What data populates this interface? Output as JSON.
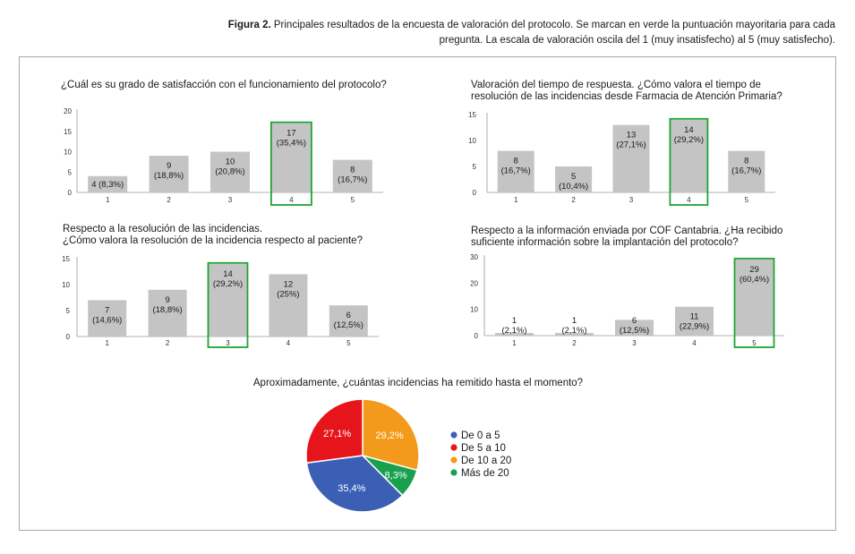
{
  "caption": {
    "prefix": "Figura 2.",
    "text": "Principales resultados de la encuesta de valoración del protocolo. Se marcan en verde la puntuación mayoritaria para cada pregunta. La escala de valoración oscila del 1 (muy insatisfecho) al 5 (muy satisfecho)."
  },
  "colors": {
    "bar": "#c4c4c4",
    "highlight": "#1ea435",
    "axis": "#9a9a9a"
  },
  "chart_data": [
    {
      "type": "bar",
      "title_lines": [
        "¿Cuál es su grado de satisfacción con el funcionamiento del protocolo?"
      ],
      "categories": [
        "1",
        "2",
        "3",
        "4",
        "5"
      ],
      "values": [
        4,
        9,
        10,
        17,
        8
      ],
      "labels": [
        [
          "4 (8,3%)"
        ],
        [
          "9",
          "(18,8%)"
        ],
        [
          "10",
          "(20,8%)"
        ],
        [
          "17",
          "(35,4%)"
        ],
        [
          "8",
          "(16,7%)"
        ]
      ],
      "yticks": [
        0,
        5,
        10,
        15,
        20
      ],
      "ylim": [
        0,
        20
      ],
      "highlight_index": 3
    },
    {
      "type": "bar",
      "title_lines": [
        "Valoración del tiempo de respuesta. ¿Cómo valora el tiempo de",
        "resolución de las incidencias desde Farmacia de Atención Primaria?"
      ],
      "categories": [
        "1",
        "2",
        "3",
        "4",
        "5"
      ],
      "values": [
        8,
        5,
        13,
        14,
        8
      ],
      "labels": [
        [
          "8",
          "(16,7%)"
        ],
        [
          "5",
          "(10,4%)"
        ],
        [
          "13",
          "(27,1%)"
        ],
        [
          "14",
          "(29,2%)"
        ],
        [
          "8",
          "(16,7%)"
        ]
      ],
      "yticks": [
        0,
        5,
        10,
        15
      ],
      "ylim": [
        0,
        15
      ],
      "highlight_index": 3
    },
    {
      "type": "bar",
      "title_lines": [
        "Respecto a la resolución de las incidencias.",
        "¿Cómo valora la resolución de la incidencia respecto al paciente?"
      ],
      "categories": [
        "1",
        "2",
        "3",
        "4",
        "5"
      ],
      "values": [
        7,
        9,
        14,
        12,
        6
      ],
      "labels": [
        [
          "7",
          "(14,6%)"
        ],
        [
          "9",
          "(18,8%)"
        ],
        [
          "14",
          "(29,2%)"
        ],
        [
          "12",
          "(25%)"
        ],
        [
          "6",
          "(12,5%)"
        ]
      ],
      "yticks": [
        0,
        5,
        10,
        15
      ],
      "ylim": [
        0,
        15
      ],
      "highlight_index": 2
    },
    {
      "type": "bar",
      "title_lines": [
        "Respecto a la información enviada por COF Cantabria. ¿Ha recibido",
        "suficiente información sobre la implantación del protocolo?"
      ],
      "categories": [
        "1",
        "2",
        "3",
        "4",
        "5"
      ],
      "values": [
        1,
        1,
        6,
        11,
        29
      ],
      "labels": [
        [
          "1",
          "(2,1%)"
        ],
        [
          "1",
          "(2,1%)"
        ],
        [
          "6",
          "(12,5%)"
        ],
        [
          "11",
          "(22,9%)"
        ],
        [
          "29",
          "(60,4%)"
        ]
      ],
      "yticks": [
        0,
        10,
        20,
        30
      ],
      "ylim": [
        0,
        30
      ],
      "highlight_index": 4
    },
    {
      "type": "pie",
      "title": "Aproximadamente, ¿cuántas incidencias ha remitido hasta el momento?",
      "slices": [
        {
          "name": "De 10 a 20",
          "value": 29.2,
          "label": "29,2%",
          "color": "#f39a1c"
        },
        {
          "name": "Más de 20",
          "value": 8.3,
          "label": "8,3%",
          "color": "#18a04c"
        },
        {
          "name": "De 0 a 5",
          "value": 35.4,
          "label": "35,4%",
          "color": "#3b5fb4"
        },
        {
          "name": "De 5 a 10",
          "value": 27.1,
          "label": "27,1%",
          "color": "#e6151b"
        }
      ],
      "legend": [
        "De 0 a 5",
        "De 5 a 10",
        "De 10 a 20",
        "Más de 20"
      ]
    }
  ]
}
